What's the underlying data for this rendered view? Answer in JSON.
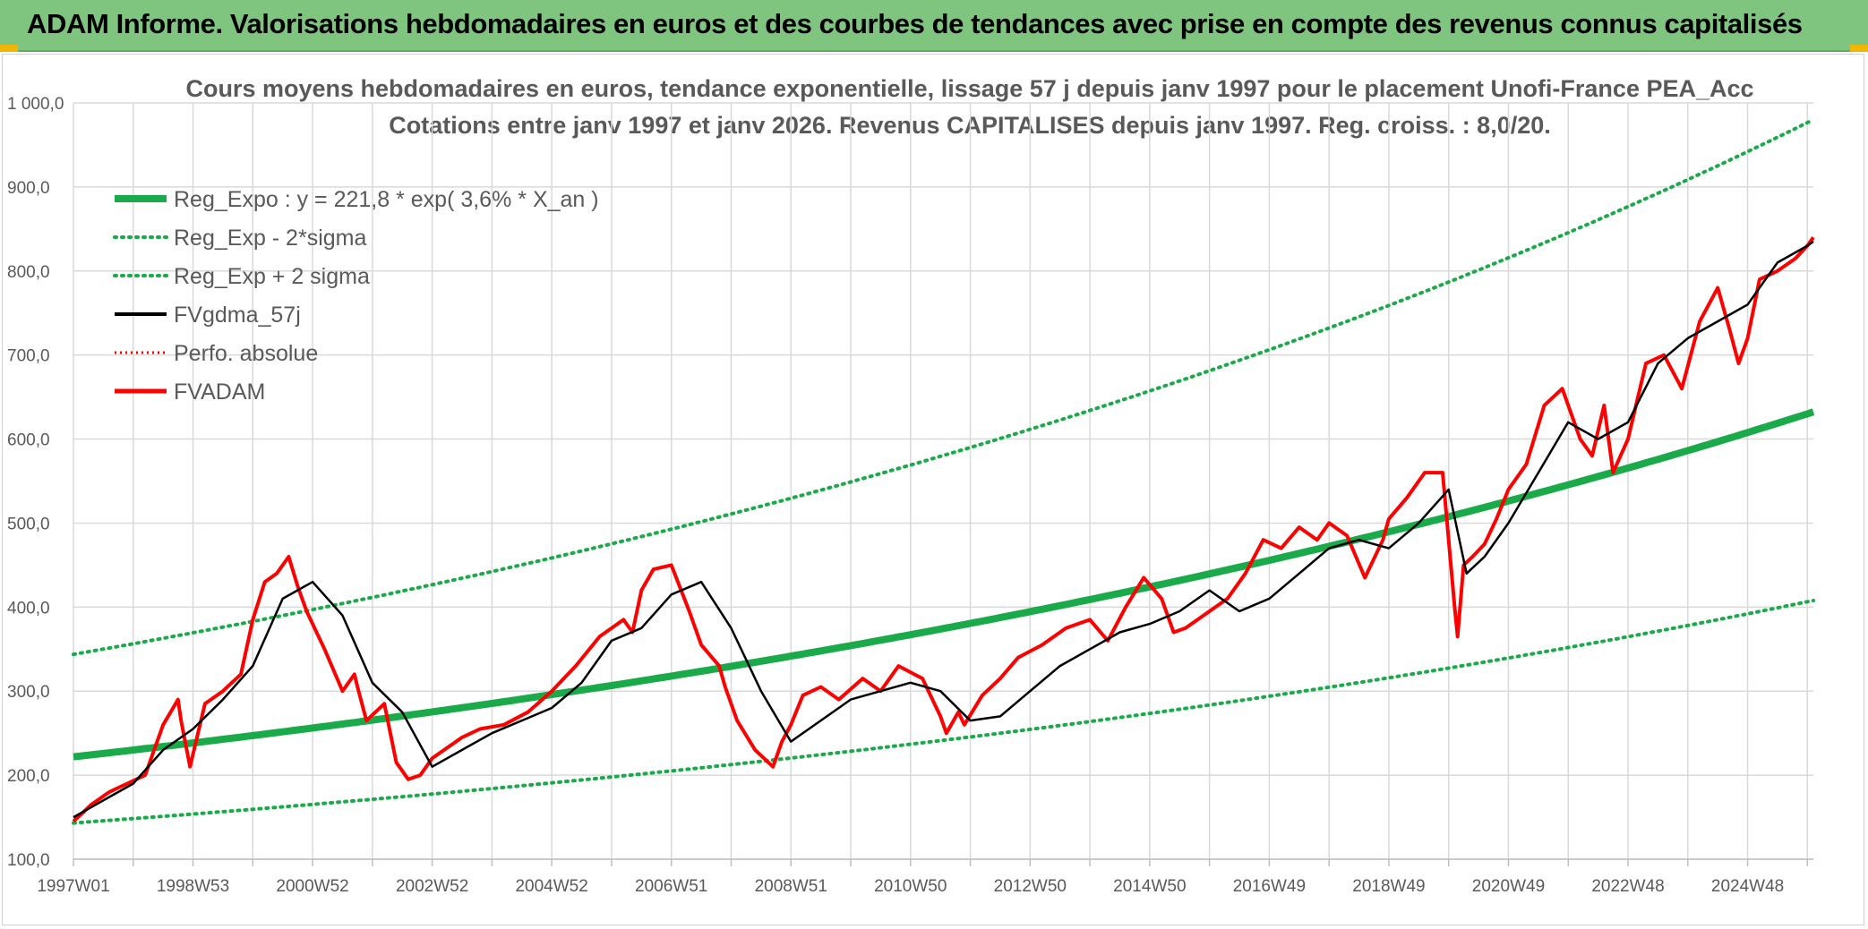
{
  "header": {
    "title": "ADAM Informe. Valorisations hebdomadaires en euros et des courbes de tendances avec prise en compte des revenus connus capitalisés"
  },
  "colors": {
    "banner": "#7fc57f",
    "trend": "#1aaa4a",
    "smooth": "#000000",
    "price": "#ff0000",
    "grid": "#d9d9d9"
  },
  "chart_data": {
    "type": "line",
    "title": "Cours moyens hebdomadaires en euros, tendance exponentielle, lissage 57 j depuis janv 1997 pour le placement Unofi-France PEA_Acc",
    "subtitle": "Cotations entre janv 1997 et janv 2026. Revenus CAPITALISES depuis janv 1997. Reg. croiss. : 8,0/20.",
    "xlabel": "",
    "ylabel": "",
    "ylim": [
      100,
      1000
    ],
    "xlim": [
      1997.0,
      2026.1
    ],
    "grid": true,
    "legend_position": "top-left",
    "y_ticks": [
      "100,0",
      "200,0",
      "300,0",
      "400,0",
      "500,0",
      "600,0",
      "700,0",
      "800,0",
      "900,0",
      "1 000,0"
    ],
    "x_ticks": [
      {
        "label": "1997W01",
        "x": 1997.0
      },
      {
        "label": "1998W53",
        "x": 1999.0
      },
      {
        "label": "2000W52",
        "x": 2001.0
      },
      {
        "label": "2002W52",
        "x": 2003.0
      },
      {
        "label": "2004W52",
        "x": 2005.0
      },
      {
        "label": "2006W51",
        "x": 2007.0
      },
      {
        "label": "2008W51",
        "x": 2009.0
      },
      {
        "label": "2010W50",
        "x": 2011.0
      },
      {
        "label": "2012W50",
        "x": 2013.0
      },
      {
        "label": "2014W50",
        "x": 2015.0
      },
      {
        "label": "2016W49",
        "x": 2017.0
      },
      {
        "label": "2018W49",
        "x": 2019.0
      },
      {
        "label": "2020W49",
        "x": 2021.0
      },
      {
        "label": "2022W48",
        "x": 2023.0
      },
      {
        "label": "2024W48",
        "x": 2025.0
      }
    ],
    "regression": {
      "a": 221.8,
      "rate": 0.036,
      "lower_factor": 0.645,
      "upper_factor": 1.55
    },
    "legend": [
      {
        "label": "Reg_Expo : y = 221,8 * exp( 3,6% *  X_an )",
        "style": "trend"
      },
      {
        "label": "Reg_Exp - 2*sigma",
        "style": "dotted-green"
      },
      {
        "label": "Reg_Exp + 2 sigma",
        "style": "dotted-green"
      },
      {
        "label": "FVgdma_57j",
        "style": "black"
      },
      {
        "label": "Perfo. absolue",
        "style": "dotted-red"
      },
      {
        "label": "FVADAM",
        "style": "red"
      }
    ],
    "series": [
      {
        "name": "FVADAM",
        "x": [
          1997.0,
          1997.3,
          1997.6,
          1997.9,
          1998.2,
          1998.5,
          1998.75,
          1998.8,
          1998.95,
          1999.2,
          1999.5,
          1999.8,
          2000.0,
          2000.2,
          2000.4,
          2000.6,
          2000.75,
          2000.9,
          2001.2,
          2001.5,
          2001.7,
          2001.75,
          2001.9,
          2002.2,
          2002.4,
          2002.6,
          2002.8,
          2003.0,
          2003.2,
          2003.5,
          2003.8,
          2004.2,
          2004.6,
          2005.0,
          2005.4,
          2005.8,
          2006.2,
          2006.35,
          2006.5,
          2006.7,
          2007.0,
          2007.3,
          2007.5,
          2007.8,
          2007.9,
          2008.1,
          2008.4,
          2008.7,
          2008.85,
          2009.0,
          2009.2,
          2009.5,
          2009.8,
          2010.2,
          2010.5,
          2010.8,
          2011.2,
          2011.5,
          2011.6,
          2011.8,
          2011.9,
          2012.2,
          2012.5,
          2012.8,
          2013.2,
          2013.6,
          2014.0,
          2014.3,
          2014.6,
          2014.9,
          2015.2,
          2015.4,
          2015.6,
          2015.8,
          2016.0,
          2016.3,
          2016.6,
          2016.9,
          2017.2,
          2017.5,
          2017.8,
          2018.0,
          2018.3,
          2018.6,
          2018.9,
          2019.0,
          2019.3,
          2019.6,
          2019.9,
          2020.1,
          2020.15,
          2020.25,
          2020.4,
          2020.6,
          2020.8,
          2021.0,
          2021.3,
          2021.6,
          2021.9,
          2022.2,
          2022.4,
          2022.6,
          2022.75,
          2023.0,
          2023.3,
          2023.6,
          2023.9,
          2024.2,
          2024.5,
          2024.7,
          2024.85,
          2025.0,
          2025.2,
          2025.5,
          2025.8,
          2026.0,
          2026.1
        ],
        "values": [
          145,
          165,
          180,
          190,
          200,
          260,
          290,
          265,
          210,
          285,
          300,
          320,
          385,
          430,
          440,
          460,
          425,
          395,
          350,
          300,
          320,
          305,
          265,
          285,
          215,
          195,
          200,
          220,
          230,
          245,
          255,
          260,
          275,
          300,
          330,
          365,
          385,
          370,
          420,
          445,
          450,
          395,
          355,
          330,
          305,
          265,
          230,
          210,
          240,
          260,
          295,
          305,
          290,
          315,
          300,
          330,
          315,
          270,
          250,
          275,
          260,
          295,
          315,
          340,
          355,
          375,
          385,
          360,
          400,
          435,
          410,
          370,
          375,
          385,
          395,
          410,
          440,
          480,
          470,
          495,
          480,
          500,
          485,
          435,
          480,
          505,
          530,
          560,
          560,
          400,
          365,
          450,
          460,
          475,
          505,
          540,
          570,
          640,
          660,
          600,
          580,
          640,
          560,
          600,
          690,
          700,
          660,
          740,
          780,
          730,
          690,
          720,
          790,
          800,
          815,
          830,
          840
        ]
      },
      {
        "name": "FVgdma_57j",
        "x": [
          1997.0,
          1997.5,
          1998.0,
          1998.5,
          1999.0,
          1999.5,
          2000.0,
          2000.5,
          2001.0,
          2001.5,
          2002.0,
          2002.5,
          2003.0,
          2003.5,
          2004.0,
          2004.5,
          2005.0,
          2005.5,
          2006.0,
          2006.5,
          2007.0,
          2007.5,
          2008.0,
          2008.5,
          2009.0,
          2009.5,
          2010.0,
          2010.5,
          2011.0,
          2011.5,
          2012.0,
          2012.5,
          2013.0,
          2013.5,
          2014.0,
          2014.5,
          2015.0,
          2015.5,
          2016.0,
          2016.5,
          2017.0,
          2017.5,
          2018.0,
          2018.5,
          2019.0,
          2019.5,
          2020.0,
          2020.3,
          2020.6,
          2021.0,
          2021.5,
          2022.0,
          2022.5,
          2023.0,
          2023.5,
          2024.0,
          2024.5,
          2025.0,
          2025.5,
          2026.0,
          2026.1
        ],
        "values": [
          150,
          170,
          190,
          230,
          255,
          290,
          330,
          410,
          430,
          390,
          310,
          275,
          210,
          230,
          250,
          265,
          280,
          310,
          360,
          375,
          415,
          430,
          375,
          300,
          240,
          265,
          290,
          300,
          310,
          300,
          265,
          270,
          300,
          330,
          350,
          370,
          380,
          395,
          420,
          395,
          410,
          440,
          470,
          480,
          470,
          500,
          540,
          440,
          460,
          500,
          560,
          620,
          600,
          620,
          690,
          720,
          740,
          760,
          810,
          830,
          835
        ]
      }
    ]
  }
}
